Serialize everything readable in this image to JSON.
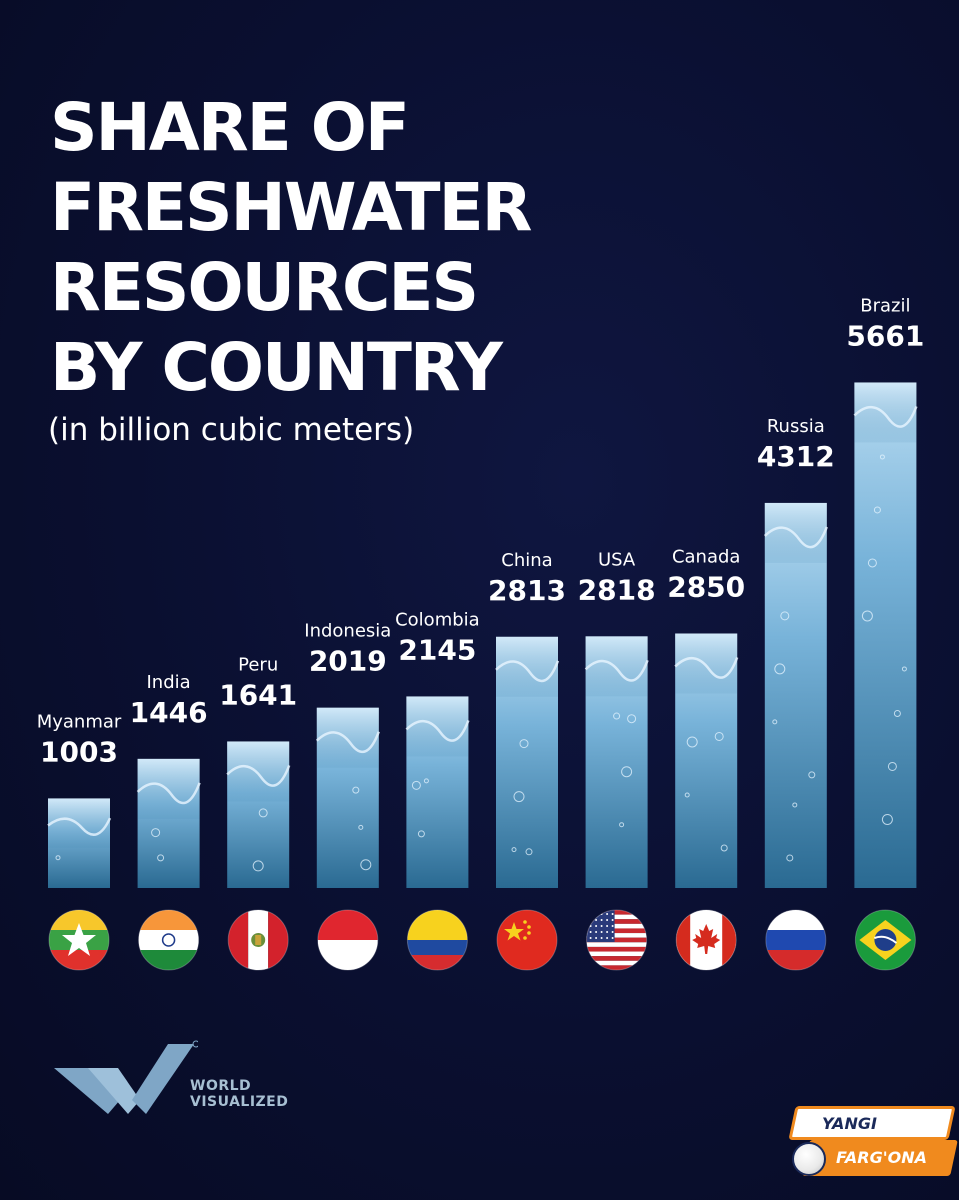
{
  "header": {
    "title_lines": [
      "SHARE OF",
      "FRESHWATER",
      "RESOURCES",
      "BY COUNTRY"
    ],
    "subtitle": "(in billion cubic meters)"
  },
  "chart_data": {
    "type": "bar",
    "title": "SHARE OF FRESHWATER RESOURCES BY COUNTRY",
    "subtitle": "(in billion cubic meters)",
    "categories": [
      "Myanmar",
      "India",
      "Peru",
      "Indonesia",
      "Colombia",
      "China",
      "USA",
      "Canada",
      "Russia",
      "Brazil"
    ],
    "values": [
      1003,
      1446,
      1641,
      2019,
      2145,
      2813,
      2818,
      2850,
      4312,
      5661
    ],
    "value_labels": [
      "1003",
      "1446",
      "1641",
      "2019",
      "2145",
      "2813",
      "2818",
      "2850",
      "4312",
      "5661"
    ],
    "flags": [
      "myanmar-flag",
      "india-flag",
      "peru-flag",
      "indonesia-flag",
      "colombia-flag",
      "china-flag",
      "usa-flag",
      "canada-flag",
      "russia-flag",
      "brazil-flag"
    ],
    "bar_style": "water-fill",
    "colors": {
      "bar_top": "#b5d7ee",
      "bar_bottom": "#2d6f96",
      "background": "#0a0f30"
    },
    "grid": false,
    "legend": "none"
  },
  "logo": {
    "icon": "world-visualized-logo-icon",
    "line1": "WORLD",
    "line2": "VISUALIZED"
  },
  "badge": {
    "top": "YANGI",
    "bottom": "FARG'ONA",
    "icon": "globe-icon",
    "accent": "#f08a1e"
  }
}
